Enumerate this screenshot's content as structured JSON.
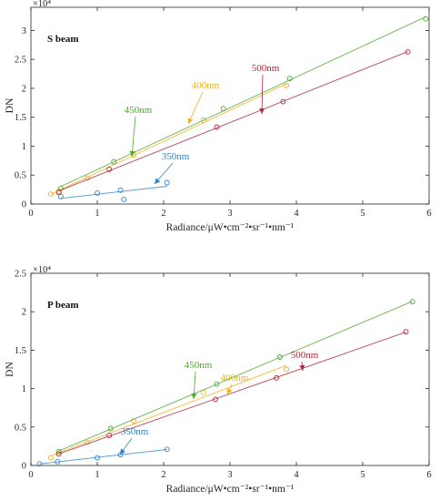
{
  "chart_data": [
    {
      "type": "scatter",
      "title": "",
      "panel_label": "S beam",
      "xlabel": "Radiance/μW•cm⁻²•sr⁻¹•nm⁻¹",
      "ylabel": "DN",
      "y_multiplier": "×10⁴",
      "xlim": [
        0,
        6
      ],
      "ylim": [
        0,
        3.4
      ],
      "xticks": [
        "0",
        "1",
        "2",
        "3",
        "4",
        "5",
        "6"
      ],
      "yticks": [
        "0",
        "0.5",
        "1",
        "1.5",
        "2",
        "2.5",
        "3"
      ],
      "grid": false,
      "series": [
        {
          "name": "350nm",
          "color": "#2f84c8",
          "x": [
            1.4,
            0.45,
            1.0,
            1.35,
            2.05
          ],
          "y": [
            0.08,
            0.13,
            0.19,
            0.24,
            0.37
          ]
        },
        {
          "name": "400nm",
          "color": "#f2b21a",
          "x": [
            0.3,
            0.42,
            0.85,
            1.55,
            2.6,
            3.85
          ],
          "y": [
            0.17,
            0.22,
            0.45,
            0.85,
            1.45,
            2.05
          ]
        },
        {
          "name": "450nm",
          "color": "#4daa2f",
          "x": [
            0.45,
            1.25,
            2.9,
            3.9,
            5.95
          ],
          "y": [
            0.27,
            0.73,
            1.65,
            2.17,
            3.2
          ]
        },
        {
          "name": "500nm",
          "color": "#b0283c",
          "x": [
            0.42,
            1.18,
            2.8,
            3.8,
            5.68
          ],
          "y": [
            0.2,
            0.6,
            1.33,
            1.77,
            2.63
          ]
        }
      ]
    },
    {
      "type": "scatter",
      "title": "",
      "panel_label": "P beam",
      "xlabel": "Radiance/μW•cm⁻²•sr⁻¹•nm⁻¹",
      "ylabel": "DN",
      "y_multiplier": "×10⁴",
      "xlim": [
        0,
        6
      ],
      "ylim": [
        0,
        2.5
      ],
      "xticks": [
        "0",
        "1",
        "2",
        "3",
        "4",
        "5",
        "6"
      ],
      "yticks": [
        "0",
        "0.5",
        "1",
        "1.5",
        "2",
        "2.5"
      ],
      "grid": false,
      "series": [
        {
          "name": "350nm",
          "color": "#2f84c8",
          "x": [
            0.13,
            0.4,
            1.0,
            1.35,
            2.05
          ],
          "y": [
            0.02,
            0.05,
            0.1,
            0.14,
            0.21
          ]
        },
        {
          "name": "400nm",
          "color": "#f2b21a",
          "x": [
            0.3,
            0.42,
            0.85,
            1.55,
            2.6,
            3.85
          ],
          "y": [
            0.1,
            0.15,
            0.3,
            0.58,
            0.95,
            1.25
          ]
        },
        {
          "name": "450nm",
          "color": "#4daa2f",
          "x": [
            0.42,
            1.2,
            2.8,
            3.75,
            5.75
          ],
          "y": [
            0.18,
            0.48,
            1.06,
            1.41,
            2.13
          ]
        },
        {
          "name": "500nm",
          "color": "#b0283c",
          "x": [
            0.42,
            1.18,
            2.78,
            3.7,
            5.65
          ],
          "y": [
            0.15,
            0.39,
            0.86,
            1.14,
            1.74
          ]
        }
      ]
    }
  ]
}
